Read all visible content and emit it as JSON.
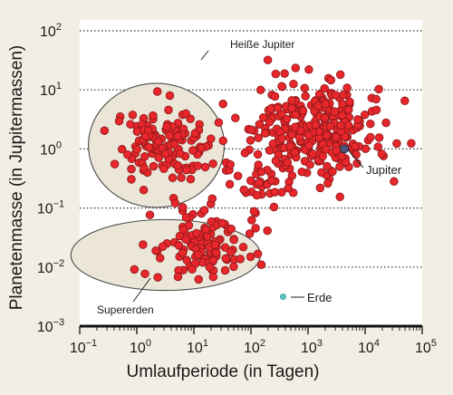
{
  "chart_data": {
    "type": "scatter",
    "title": "",
    "xlabel": "Umlaufperiode (in Tagen)",
    "ylabel": "Planetenmasse (in Jupitermassen)",
    "x_scale": "log",
    "y_scale": "log",
    "xlim": [
      0.1,
      100000
    ],
    "ylim": [
      0.001,
      100
    ],
    "x_ticks": [
      {
        "base": "10",
        "exp": "−1"
      },
      {
        "base": "10",
        "exp": "0"
      },
      {
        "base": "10",
        "exp": "1"
      },
      {
        "base": "10",
        "exp": "2"
      },
      {
        "base": "10",
        "exp": "3"
      },
      {
        "base": "10",
        "exp": "4"
      },
      {
        "base": "10",
        "exp": "5"
      }
    ],
    "y_ticks": [
      {
        "base": "10",
        "exp": "−3"
      },
      {
        "base": "10",
        "exp": "−2"
      },
      {
        "base": "10",
        "exp": "−1"
      },
      {
        "base": "10",
        "exp": "0"
      },
      {
        "base": "10",
        "exp": "1"
      },
      {
        "base": "10",
        "exp": "2"
      }
    ],
    "grid": "horizontal dotted",
    "colors": {
      "exoplanets": "#e8262b",
      "exoplanet_edge": "#8e1a1a",
      "jupiter": "#4a5578",
      "earth": "#5ec4c0",
      "region_fill": "#ebe6d8",
      "region_edge": "#4a4a4a"
    },
    "groups": [
      {
        "name": "Heiße Jupiter",
        "center": [
          2.2,
          1.15
        ],
        "span_x": [
          0.8,
          1.58
        ],
        "span_y": [
          0.9,
          1.2
        ]
      },
      {
        "name": "Supererden",
        "center": [
          3.2,
          0.016
        ],
        "span_x": [
          1.65,
          1.67
        ],
        "span_y": [
          0.62,
          0.58
        ]
      }
    ],
    "highlights": [
      {
        "name": "Jupiter",
        "x": 4333,
        "y": 1
      },
      {
        "name": "Erde",
        "x": 365,
        "y": 0.00315
      }
    ],
    "series": [
      {
        "clusters": [
          {
            "x": 2.8,
            "y": 1.1,
            "sx": 0.38,
            "sy": 0.3,
            "n": 135
          },
          {
            "x": 1500,
            "y": 2.0,
            "sx": 0.55,
            "sy": 0.38,
            "n": 300
          },
          {
            "x": 15,
            "y": 0.025,
            "sx": 0.45,
            "sy": 0.28,
            "n": 115
          },
          {
            "x": 160,
            "y": 0.25,
            "sx": 0.3,
            "sy": 0.3,
            "n": 35
          }
        ],
        "seed": 20240517
      }
    ]
  },
  "annotations": {
    "hot_jupiters": "Heiße Jupiter",
    "super_earths": "Supererden",
    "jupiter": "Jupiter",
    "earth": "Erde"
  }
}
